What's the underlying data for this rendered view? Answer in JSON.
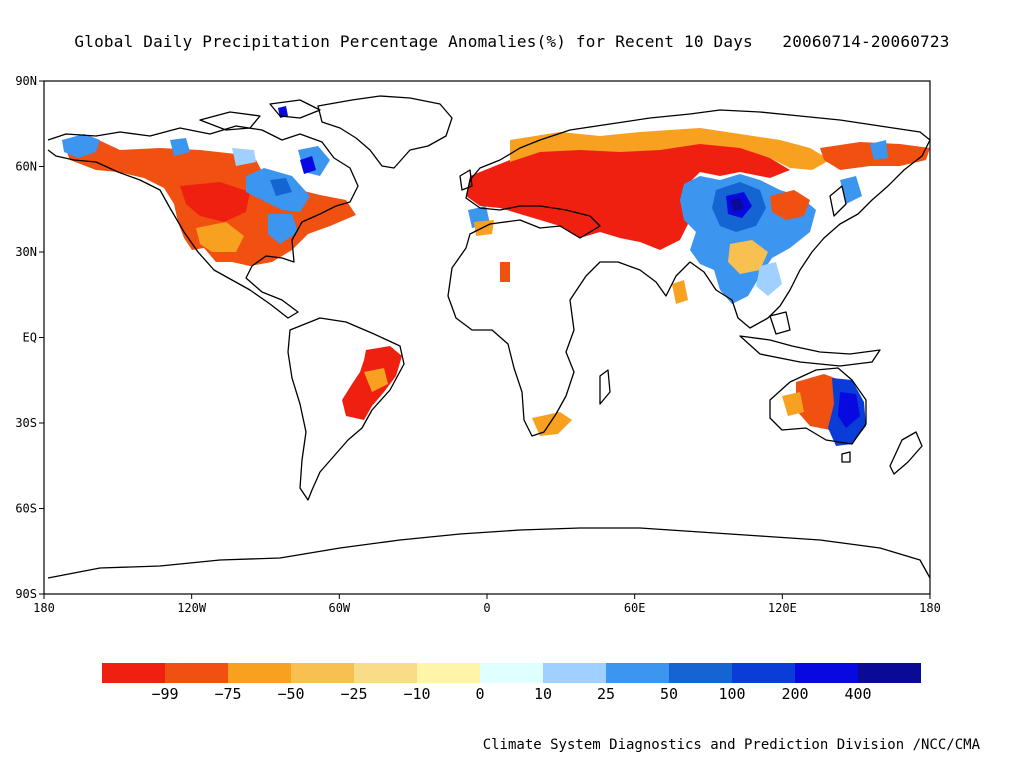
{
  "title": "Global Daily Precipitation Percentage Anomalies(%) for Recent 10 Days",
  "date_range": "20060714-20060723",
  "credit": "Climate System Diagnostics and Prediction Division /NCC/CMA",
  "map": {
    "lat_ticks": [
      "90N",
      "60N",
      "30N",
      "EQ",
      "30S",
      "60S",
      "90S"
    ],
    "lon_ticks": [
      "180",
      "120W",
      "60W",
      "0",
      "60E",
      "120E",
      "180"
    ]
  },
  "legend": {
    "colors": [
      "#f02010",
      "#f05010",
      "#f8a020",
      "#f8c050",
      "#f8dc88",
      "#fff5a8",
      "#e0ffff",
      "#a0d0ff",
      "#3c96f0",
      "#1464d2",
      "#0a3cd8",
      "#0808e0",
      "#0a0a96"
    ],
    "labels": [
      "-99",
      "-75",
      "-50",
      "-25",
      "-10",
      "0",
      "10",
      "25",
      "50",
      "100",
      "200",
      "400"
    ]
  }
}
